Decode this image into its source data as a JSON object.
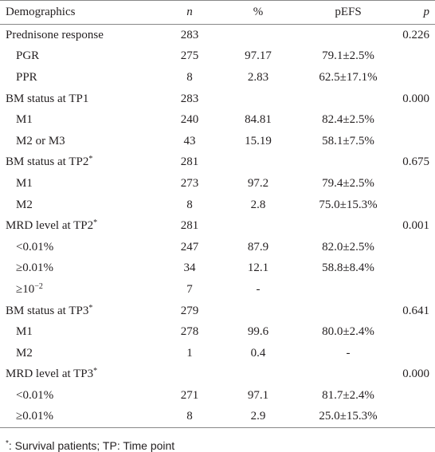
{
  "table": {
    "header": [
      "Demographics",
      "n",
      "%",
      "pEFS",
      "p"
    ],
    "rows": [
      {
        "indent": false,
        "cells": [
          "Prednisone response",
          "283",
          null,
          null,
          "0.226"
        ]
      },
      {
        "indent": true,
        "cells": [
          "PGR",
          "275",
          "97.17",
          "79.1±2.5%",
          null
        ]
      },
      {
        "indent": true,
        "cells": [
          "PPR",
          "8",
          "2.83",
          "62.5±17.1%",
          null
        ]
      },
      {
        "indent": false,
        "cells": [
          "BM status at TP1",
          "283",
          null,
          null,
          "0.000"
        ]
      },
      {
        "indent": true,
        "cells": [
          "M1",
          "240",
          "84.81",
          "82.4±2.5%",
          null
        ]
      },
      {
        "indent": true,
        "cells": [
          "M2 or M3",
          "43",
          "15.19",
          "58.1±7.5%",
          null
        ]
      },
      {
        "indent": false,
        "cells": [
          {
            "text": "BM status at TP2",
            "sup": "*"
          },
          "281",
          null,
          null,
          "0.675"
        ]
      },
      {
        "indent": true,
        "cells": [
          "M1",
          "273",
          "97.2",
          "79.4±2.5%",
          null
        ]
      },
      {
        "indent": true,
        "cells": [
          "M2",
          "8",
          "2.8",
          "75.0±15.3%",
          null
        ]
      },
      {
        "indent": false,
        "cells": [
          {
            "text": "MRD level at TP2",
            "sup": "*"
          },
          "281",
          null,
          null,
          "0.001"
        ]
      },
      {
        "indent": true,
        "cells": [
          "<0.01%",
          "247",
          "87.9",
          "82.0±2.5%",
          null
        ]
      },
      {
        "indent": true,
        "cells": [
          "≥0.01%",
          "34",
          "12.1",
          "58.8±8.4%",
          null
        ]
      },
      {
        "indent": true,
        "cells": [
          {
            "text": "≥10",
            "sup": "−2"
          },
          "7",
          "-",
          null,
          null
        ]
      },
      {
        "indent": false,
        "cells": [
          {
            "text": "BM status at TP3",
            "sup": "*"
          },
          "279",
          null,
          null,
          "0.641"
        ]
      },
      {
        "indent": true,
        "cells": [
          "M1",
          "278",
          "99.6",
          "80.0±2.4%",
          null
        ]
      },
      {
        "indent": true,
        "cells": [
          "M2",
          "1",
          "0.4",
          "-",
          null
        ]
      },
      {
        "indent": false,
        "cells": [
          {
            "text": "MRD level at TP3",
            "sup": "*"
          },
          null,
          null,
          null,
          "0.000"
        ]
      },
      {
        "indent": true,
        "cells": [
          "<0.01%",
          "271",
          "97.1",
          "81.7±2.4%",
          null
        ]
      },
      {
        "indent": true,
        "cells": [
          "≥0.01%",
          "8",
          "2.9",
          "25.0±15.3%",
          null
        ]
      }
    ],
    "footnote": {
      "sup": "*",
      "text": ": Survival patients; TP: Time point"
    }
  }
}
